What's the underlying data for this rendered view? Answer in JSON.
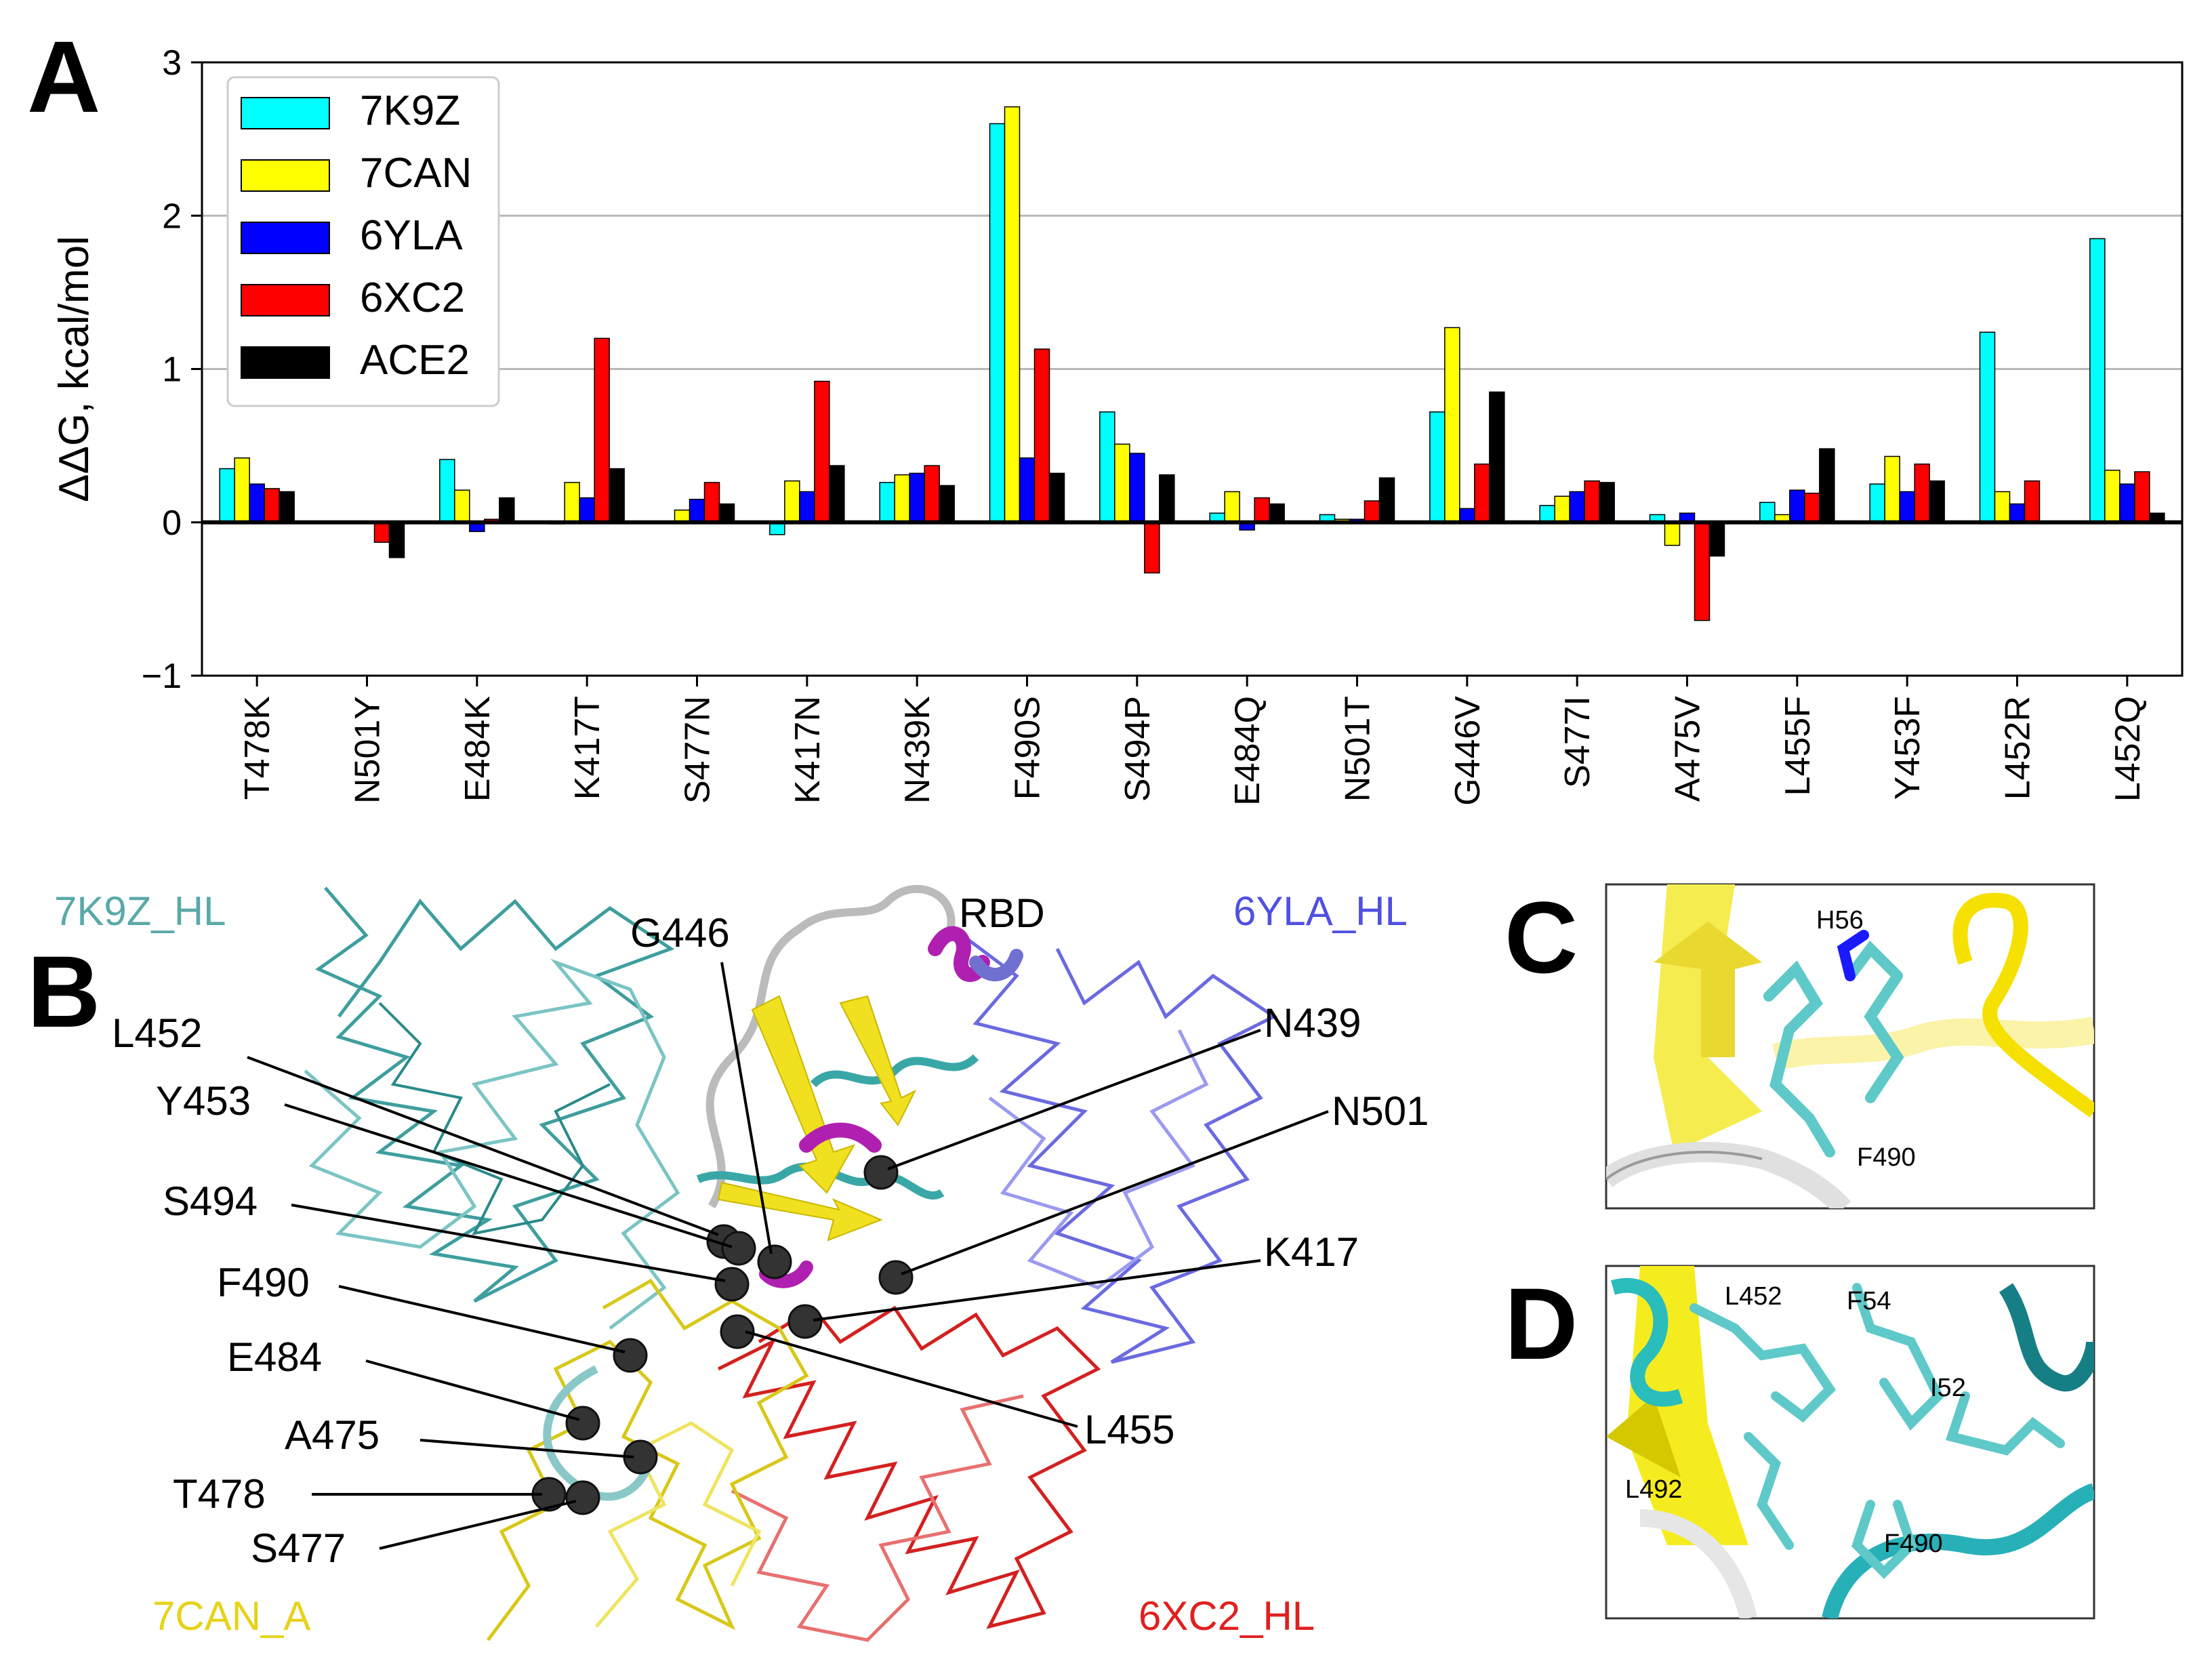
{
  "panels": {
    "a": "A",
    "b": "B",
    "c": "C",
    "d": "D"
  },
  "chart_data": {
    "type": "bar",
    "title": "",
    "xlabel": "",
    "ylabel": "ΔΔG, kcal/mol",
    "ylim": [
      -1,
      3
    ],
    "yticks": [
      -1,
      0,
      1,
      2,
      3
    ],
    "ytick_labels": [
      "−1",
      "0",
      "1",
      "2",
      "3"
    ],
    "grid": "horizontal",
    "legend_position": "top-left",
    "categories": [
      "T478K",
      "N501Y",
      "E484K",
      "K417T",
      "S477N",
      "K417N",
      "N439K",
      "F490S",
      "S494P",
      "E484Q",
      "N501T",
      "G446V",
      "S477I",
      "A475V",
      "L455F",
      "Y453F",
      "L452R",
      "L452Q"
    ],
    "series": [
      {
        "name": "7K9Z",
        "color": "#00ffff",
        "values": [
          0.35,
          0.0,
          0.41,
          -0.01,
          0.0,
          -0.08,
          0.26,
          2.6,
          0.72,
          0.06,
          0.05,
          0.72,
          0.11,
          0.05,
          0.13,
          0.25,
          1.24,
          1.85
        ]
      },
      {
        "name": "7CAN",
        "color": "#ffff00",
        "values": [
          0.42,
          0.0,
          0.21,
          0.26,
          0.08,
          0.27,
          0.31,
          2.71,
          0.51,
          0.2,
          0.02,
          1.27,
          0.17,
          -0.15,
          0.05,
          0.43,
          0.2,
          0.34
        ]
      },
      {
        "name": "6YLA",
        "color": "#0000ff",
        "values": [
          0.25,
          0.0,
          -0.06,
          0.16,
          0.15,
          0.2,
          0.32,
          0.42,
          0.45,
          -0.05,
          0.02,
          0.09,
          0.2,
          0.06,
          0.21,
          0.2,
          0.12,
          0.25
        ]
      },
      {
        "name": "6XC2",
        "color": "#ff0000",
        "values": [
          0.22,
          -0.13,
          0.02,
          1.2,
          0.26,
          0.92,
          0.37,
          1.13,
          -0.33,
          0.16,
          0.14,
          0.38,
          0.27,
          -0.64,
          0.19,
          0.38,
          0.27,
          0.33
        ]
      },
      {
        "name": "ACE2",
        "color": "#000000",
        "values": [
          0.2,
          -0.23,
          0.16,
          0.35,
          0.12,
          0.37,
          0.24,
          0.32,
          0.31,
          0.12,
          0.29,
          0.85,
          0.26,
          -0.22,
          0.48,
          0.27,
          0.0,
          0.06
        ]
      }
    ]
  },
  "structure": {
    "chain_labels": [
      {
        "text": "7K9Z_HL",
        "color": "#5aa9a9"
      },
      {
        "text": "6YLA_HL",
        "color": "#5050e0"
      },
      {
        "text": "7CAN_A",
        "color": "#e6d31a"
      },
      {
        "text": "6XC2_HL",
        "color": "#e02020"
      },
      {
        "text": "RBD",
        "color": "#000000"
      }
    ],
    "residues_left": [
      "L452",
      "Y453",
      "S494",
      "F490",
      "E484",
      "A475",
      "T478",
      "S477"
    ],
    "residues_right": [
      "G446",
      "N439",
      "N501",
      "K417",
      "L455"
    ]
  },
  "inset_c": {
    "labels": [
      "H56",
      "F490"
    ]
  },
  "inset_d": {
    "labels": [
      "L452",
      "F54",
      "I52",
      "L492",
      "F490"
    ]
  }
}
